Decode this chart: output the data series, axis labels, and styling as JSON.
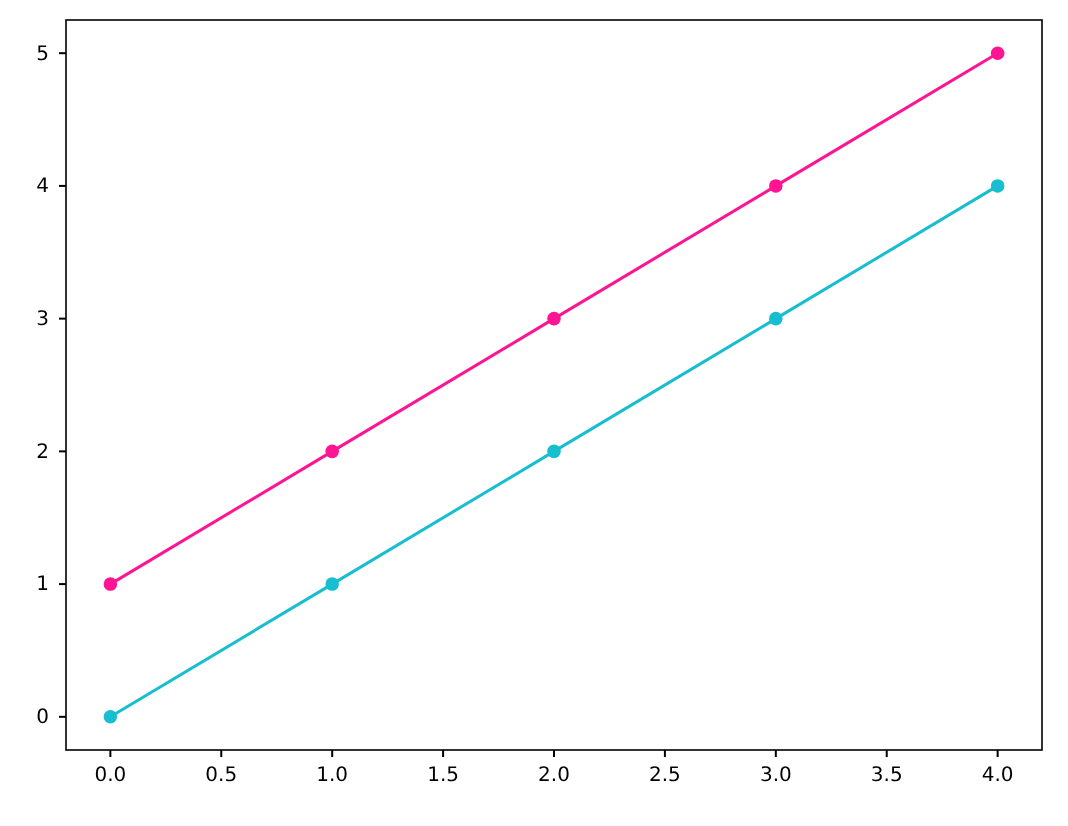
{
  "chart_data": {
    "type": "line",
    "x": [
      0,
      1,
      2,
      3,
      4
    ],
    "series": [
      {
        "color": "#17becf",
        "values": [
          0,
          1,
          2,
          3,
          4
        ]
      },
      {
        "color": "#ff1493",
        "values": [
          1,
          2,
          3,
          4,
          5
        ]
      }
    ],
    "xlim": [
      -0.2,
      4.2
    ],
    "ylim": [
      -0.25,
      5.25
    ],
    "xticks": [
      {
        "value": 0,
        "label": "0.0"
      },
      {
        "value": 0.5,
        "label": "0.5"
      },
      {
        "value": 1,
        "label": "1.0"
      },
      {
        "value": 1.5,
        "label": "1.5"
      },
      {
        "value": 2,
        "label": "2.0"
      },
      {
        "value": 2.5,
        "label": "2.5"
      },
      {
        "value": 3,
        "label": "3.0"
      },
      {
        "value": 3.5,
        "label": "3.5"
      },
      {
        "value": 4,
        "label": "4.0"
      }
    ],
    "yticks": [
      0,
      1,
      2,
      3,
      4,
      5
    ],
    "marker": "circle",
    "line_style": "solid"
  }
}
